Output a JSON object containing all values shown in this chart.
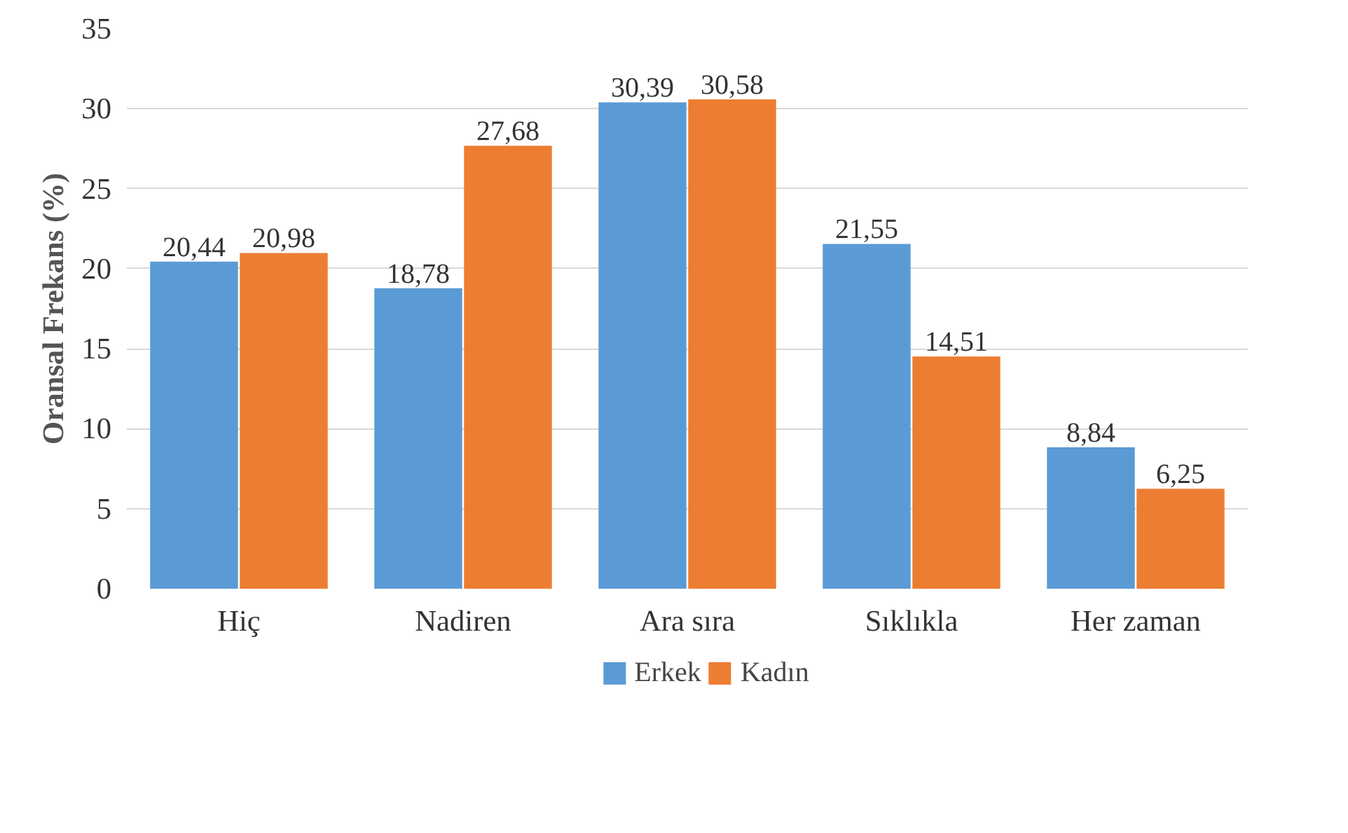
{
  "chart_data": {
    "type": "bar",
    "ylabel": "Oransal Frekans (%)",
    "categories": [
      "Hiç",
      "Nadiren",
      "Ara sıra",
      "Sıklıkla",
      "Her zaman"
    ],
    "series": [
      {
        "name": "Erkek",
        "color": "#5b9bd5",
        "values": [
          20.44,
          18.78,
          30.39,
          21.55,
          8.84
        ],
        "value_labels": [
          "20,44",
          "18,78",
          "30,39",
          "21,55",
          "8,84"
        ]
      },
      {
        "name": "Kadın",
        "color": "#ed7d31",
        "values": [
          20.98,
          27.68,
          30.58,
          14.51,
          6.25
        ],
        "value_labels": [
          "20,98",
          "27,68",
          "30,58",
          "14,51",
          "6,25"
        ]
      }
    ],
    "ylim": [
      0,
      35
    ],
    "yticks": [
      0,
      5,
      10,
      15,
      20,
      25,
      30,
      35
    ],
    "grid": "y",
    "legend": "bottom"
  }
}
